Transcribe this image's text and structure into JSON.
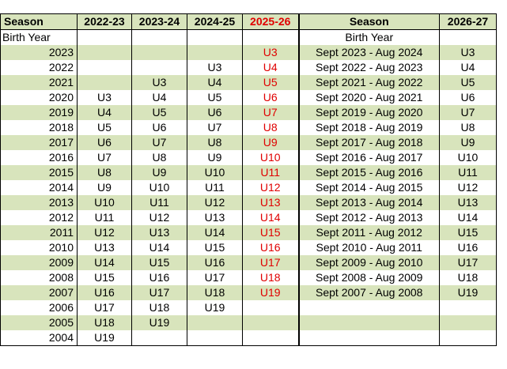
{
  "table": {
    "header": [
      "Season",
      "2022-23",
      "2023-24",
      "2024-25",
      "2025-26",
      "Season",
      "2026-27"
    ],
    "subheader": [
      "Birth Year",
      null,
      null,
      null,
      null,
      "Birth Year",
      null
    ],
    "rows": [
      [
        2023,
        null,
        null,
        null,
        "U3",
        "Sept 2023 - Aug 2024",
        "U3"
      ],
      [
        2022,
        null,
        null,
        "U3",
        "U4",
        "Sept 2022 - Aug 2023",
        "U4"
      ],
      [
        2021,
        null,
        "U3",
        "U4",
        "U5",
        "Sept 2021 - Aug 2022",
        "U5"
      ],
      [
        2020,
        "U3",
        "U4",
        "U5",
        "U6",
        "Sept 2020 - Aug 2021",
        "U6"
      ],
      [
        2019,
        "U4",
        "U5",
        "U6",
        "U7",
        "Sept 2019 - Aug 2020",
        "U7"
      ],
      [
        2018,
        "U5",
        "U6",
        "U7",
        "U8",
        "Sept 2018 - Aug 2019",
        "U8"
      ],
      [
        2017,
        "U6",
        "U7",
        "U8",
        "U9",
        "Sept 2017 - Aug 2018",
        "U9"
      ],
      [
        2016,
        "U7",
        "U8",
        "U9",
        "U10",
        "Sept 2016 - Aug 2017",
        "U10"
      ],
      [
        2015,
        "U8",
        "U9",
        "U10",
        "U11",
        "Sept 2015 - Aug 2016",
        "U11"
      ],
      [
        2014,
        "U9",
        "U10",
        "U11",
        "U12",
        "Sept 2014 - Aug 2015",
        "U12"
      ],
      [
        2013,
        "U10",
        "U11",
        "U12",
        "U13",
        "Sept 2013 - Aug 2014",
        "U13"
      ],
      [
        2012,
        "U11",
        "U12",
        "U13",
        "U14",
        "Sept 2012 - Aug 2013",
        "U14"
      ],
      [
        2011,
        "U12",
        "U13",
        "U14",
        "U15",
        "Sept 2011 - Aug 2012",
        "U15"
      ],
      [
        2010,
        "U13",
        "U14",
        "U15",
        "U16",
        "Sept 2010 - Aug 2011",
        "U16"
      ],
      [
        2009,
        "U14",
        "U15",
        "U16",
        "U17",
        "Sept 2009 - Aug 2010",
        "U17"
      ],
      [
        2008,
        "U15",
        "U16",
        "U17",
        "U18",
        "Sept 2008 - Aug 2009",
        "U18"
      ],
      [
        2007,
        "U16",
        "U17",
        "U18",
        "U19",
        "Sept 2007 - Aug 2008",
        "U19"
      ],
      [
        2006,
        "U17",
        "U18",
        "U19",
        null,
        null,
        null
      ],
      [
        2005,
        "U18",
        "U19",
        null,
        null,
        null,
        null
      ],
      [
        2004,
        "U19",
        null,
        null,
        null,
        null,
        null
      ]
    ]
  }
}
